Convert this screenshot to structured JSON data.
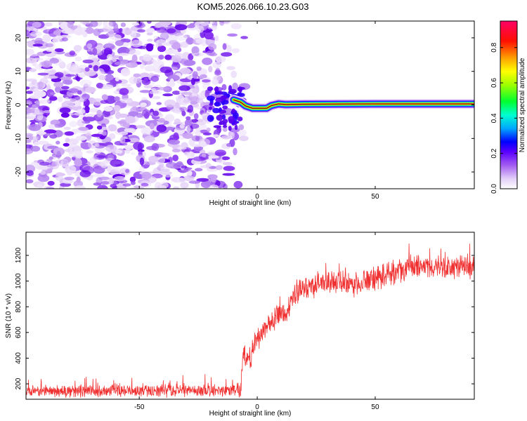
{
  "title": "KOM5.2026.066.10.23.G03",
  "chart_data": [
    {
      "type": "heatmap",
      "name": "spectrogram",
      "xlabel": "Height of straight line (km)",
      "ylabel": "Frequency (Hz)",
      "xlim": [
        -98,
        92
      ],
      "ylim": [
        -25,
        25
      ],
      "xticks": [
        -50,
        0,
        50
      ],
      "yticks": [
        -20,
        -10,
        0,
        10,
        20
      ],
      "colorbar": {
        "label": "Normalized spectral amplitude",
        "range": [
          0.0,
          0.95
        ],
        "ticks": [
          0.0,
          0.2,
          0.4,
          0.6,
          0.8
        ],
        "tick_labels": [
          "0.0",
          "0.2",
          "0.4",
          "0.6",
          "0.8"
        ],
        "colors": [
          "#f0e6fa",
          "#b37ff0",
          "#7a00ff",
          "#0000ff",
          "#00c8ff",
          "#00ff66",
          "#80ff00",
          "#ffff00",
          "#ff9900",
          "#ff0000",
          "#ff0066"
        ]
      },
      "noise_region_x": [
        -98,
        -10
      ],
      "ridge": [
        {
          "x": -10,
          "y": 1.5
        },
        {
          "x": -7,
          "y": 0.8
        },
        {
          "x": -5,
          "y": -0.3
        },
        {
          "x": -2,
          "y": -1.0
        },
        {
          "x": 4,
          "y": -1.0
        },
        {
          "x": 6,
          "y": -0.2
        },
        {
          "x": 9,
          "y": 0.3
        },
        {
          "x": 12,
          "y": 0.1
        },
        {
          "x": 20,
          "y": 0.2
        },
        {
          "x": 50,
          "y": 0.3
        },
        {
          "x": 92,
          "y": 0.3
        }
      ]
    },
    {
      "type": "line",
      "name": "snr",
      "xlabel": "Height of straight line (km)",
      "ylabel": "SNR (10 * v/v)",
      "xlim": [
        -98,
        92
      ],
      "ylim": [
        80,
        1380
      ],
      "xticks": [
        -50,
        0,
        50
      ],
      "yticks": [
        200,
        400,
        600,
        800,
        1000,
        1200
      ],
      "color": "#f03030",
      "series": [
        {
          "name": "SNR",
          "trend": [
            {
              "x": -98,
              "y": 140
            },
            {
              "x": -10,
              "y": 150
            },
            {
              "x": -7,
              "y": 180
            },
            {
              "x": -6,
              "y": 450
            },
            {
              "x": -4,
              "y": 350
            },
            {
              "x": 0,
              "y": 560
            },
            {
              "x": 5,
              "y": 660
            },
            {
              "x": 10,
              "y": 760
            },
            {
              "x": 12,
              "y": 720
            },
            {
              "x": 15,
              "y": 860
            },
            {
              "x": 20,
              "y": 950
            },
            {
              "x": 30,
              "y": 1000
            },
            {
              "x": 40,
              "y": 960
            },
            {
              "x": 50,
              "y": 1020
            },
            {
              "x": 60,
              "y": 1080
            },
            {
              "x": 70,
              "y": 1120
            },
            {
              "x": 80,
              "y": 1100
            },
            {
              "x": 92,
              "y": 1120
            }
          ],
          "noise_amplitude_low": 55,
          "noise_amplitude_high": 110
        }
      ]
    }
  ]
}
